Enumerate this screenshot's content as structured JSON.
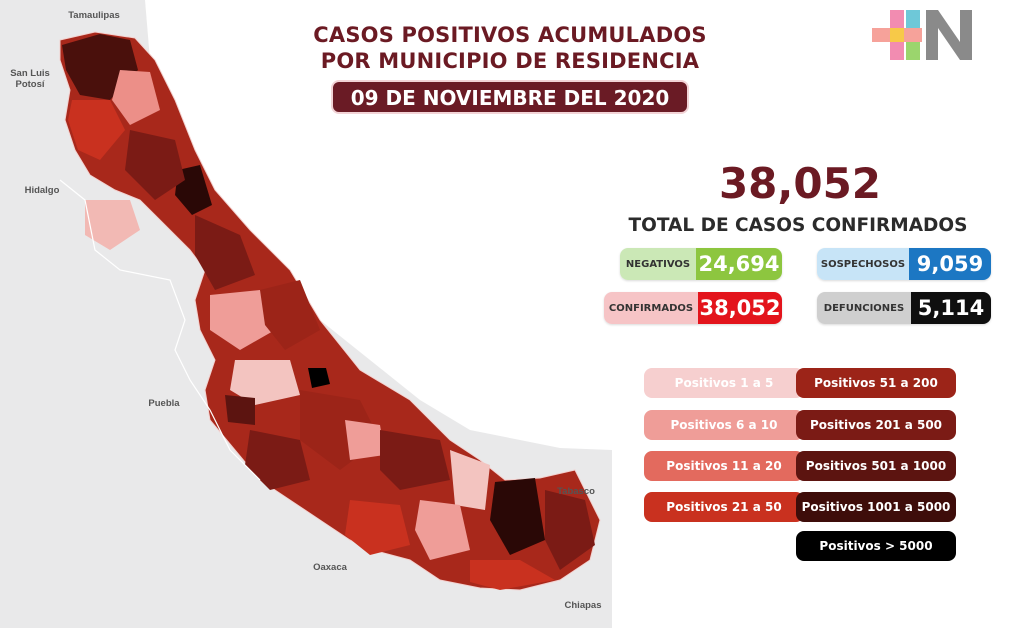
{
  "header": {
    "title_line1": "CASOS POSITIVOS ACUMULADOS",
    "title_line2": "POR MUNICIPIO DE RESIDENCIA",
    "date": "09 DE NOVIEMBRE DEL 2020"
  },
  "brand": {
    "logo_name": "plus-n-logo"
  },
  "total": {
    "value": "38,052",
    "label": "TOTAL DE CASOS CONFIRMADOS"
  },
  "stats": {
    "negativos": {
      "label": "NEGATIVOS",
      "value": "24,694",
      "color": "#8dc63f"
    },
    "sospechosos": {
      "label": "SOSPECHOSOS",
      "value": "9,059",
      "color": "#1c77c3"
    },
    "confirmados": {
      "label": "CONFIRMADOS",
      "value": "38,052",
      "color": "#e3141c"
    },
    "defunciones": {
      "label": "DEFUNCIONES",
      "value": "5,114",
      "color": "#0f0f0f"
    }
  },
  "legend": [
    {
      "label": "Positivos 1 a 5",
      "color": "#f6cfcf"
    },
    {
      "label": "Positivos 6 a 10",
      "color": "#ef9d98"
    },
    {
      "label": "Positivos 11 a 20",
      "color": "#e36a5e"
    },
    {
      "label": "Positivos 21 a 50",
      "color": "#c9311f"
    },
    {
      "label": "Positivos 51 a 200",
      "color": "#9c2418"
    },
    {
      "label": "Positivos 201 a 500",
      "color": "#7b1b15"
    },
    {
      "label": "Positivos 501 a 1000",
      "color": "#5c1410"
    },
    {
      "label": "Positivos 1001 a 5000",
      "color": "#3e0d0a"
    },
    {
      "label": "Positivos > 5000",
      "color": "#000000"
    }
  ],
  "map": {
    "neighbor_states": [
      "Tamaulipas",
      "San Luis Potosí",
      "Hidalgo",
      "Puebla",
      "Oaxaca",
      "Tabasco",
      "Chiapas"
    ]
  }
}
